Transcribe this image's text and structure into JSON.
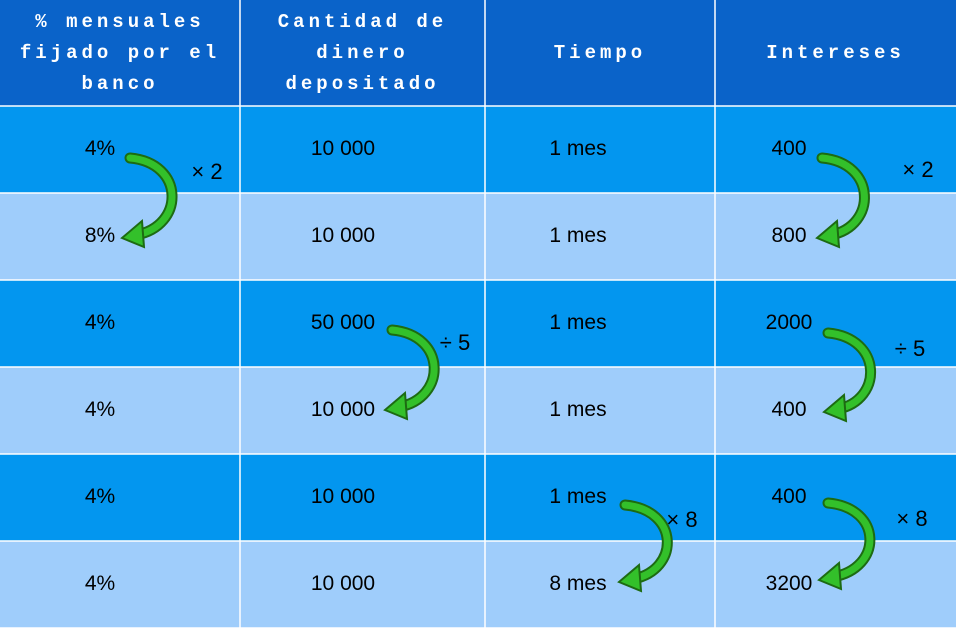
{
  "table": {
    "header": [
      "% mensuales fijado por el banco",
      "Cantidad de dinero depositado",
      "Tiempo",
      "Intereses"
    ],
    "rows": [
      [
        "4%",
        "10 000",
        "1 mes",
        "400"
      ],
      [
        "8%",
        "10 000",
        "1 mes",
        "800"
      ],
      [
        "4%",
        "50 000",
        "1 mes",
        "2000"
      ],
      [
        "4%",
        "10 000",
        "1 mes",
        "400"
      ],
      [
        "4%",
        "10 000",
        "1 mes",
        "400"
      ],
      [
        "4%",
        "10 000",
        "8 mes",
        "3200"
      ]
    ]
  },
  "annotations": [
    "× 2",
    "× 2",
    "÷ 5",
    "÷ 5",
    "× 8",
    "× 8"
  ]
}
